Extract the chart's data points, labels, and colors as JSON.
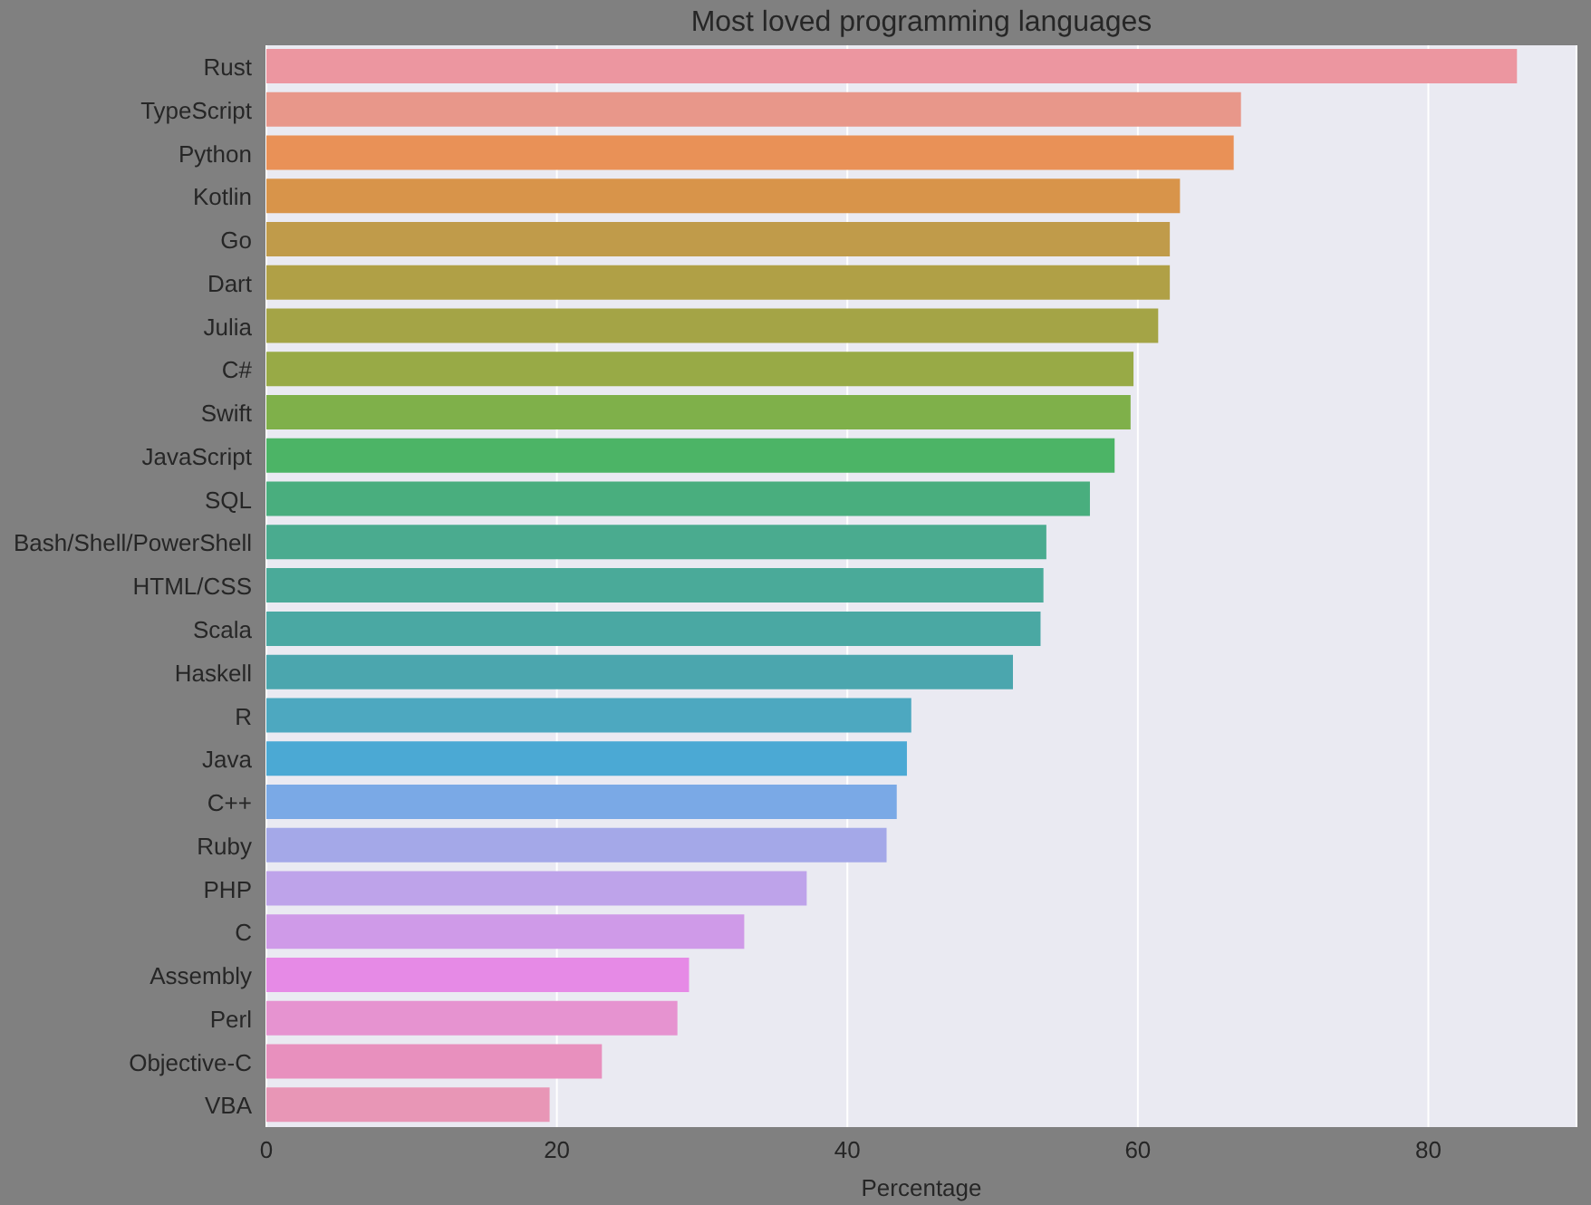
{
  "chart_data": {
    "type": "bar",
    "orientation": "horizontal",
    "title": "Most loved programming languages",
    "xlabel": "Percentage",
    "categories": [
      "Rust",
      "TypeScript",
      "Python",
      "Kotlin",
      "Go",
      "Dart",
      "Julia",
      "C#",
      "Swift",
      "JavaScript",
      "SQL",
      "Bash/Shell/PowerShell",
      "HTML/CSS",
      "Scala",
      "Haskell",
      "R",
      "Java",
      "C++",
      "Ruby",
      "PHP",
      "C",
      "Assembly",
      "Perl",
      "Objective-C",
      "VBA"
    ],
    "values": [
      86.1,
      67.1,
      66.6,
      62.9,
      62.2,
      62.2,
      61.4,
      59.7,
      59.5,
      58.4,
      56.7,
      53.7,
      53.5,
      53.3,
      51.4,
      44.4,
      44.1,
      43.4,
      42.7,
      37.2,
      32.9,
      29.1,
      28.3,
      23.1,
      19.5
    ],
    "colors": [
      "#ec96a0",
      "#e8978a",
      "#e99157",
      "#d8944a",
      "#c09b4a",
      "#b0a046",
      "#a4a446",
      "#98aa46",
      "#7fb04a",
      "#4cb466",
      "#49ae7e",
      "#4aab8f",
      "#4aaa99",
      "#4aa8a3",
      "#4ba6ae",
      "#4da8c0",
      "#4ba9d4",
      "#7aa9e6",
      "#a4a8e8",
      "#bea3ea",
      "#cf9ae8",
      "#e68ae6",
      "#e693d0",
      "#e890be",
      "#e896b6"
    ],
    "xlim": [
      0,
      90.2
    ],
    "xticks": [
      0,
      20,
      40,
      60,
      80
    ],
    "grid": "x"
  }
}
